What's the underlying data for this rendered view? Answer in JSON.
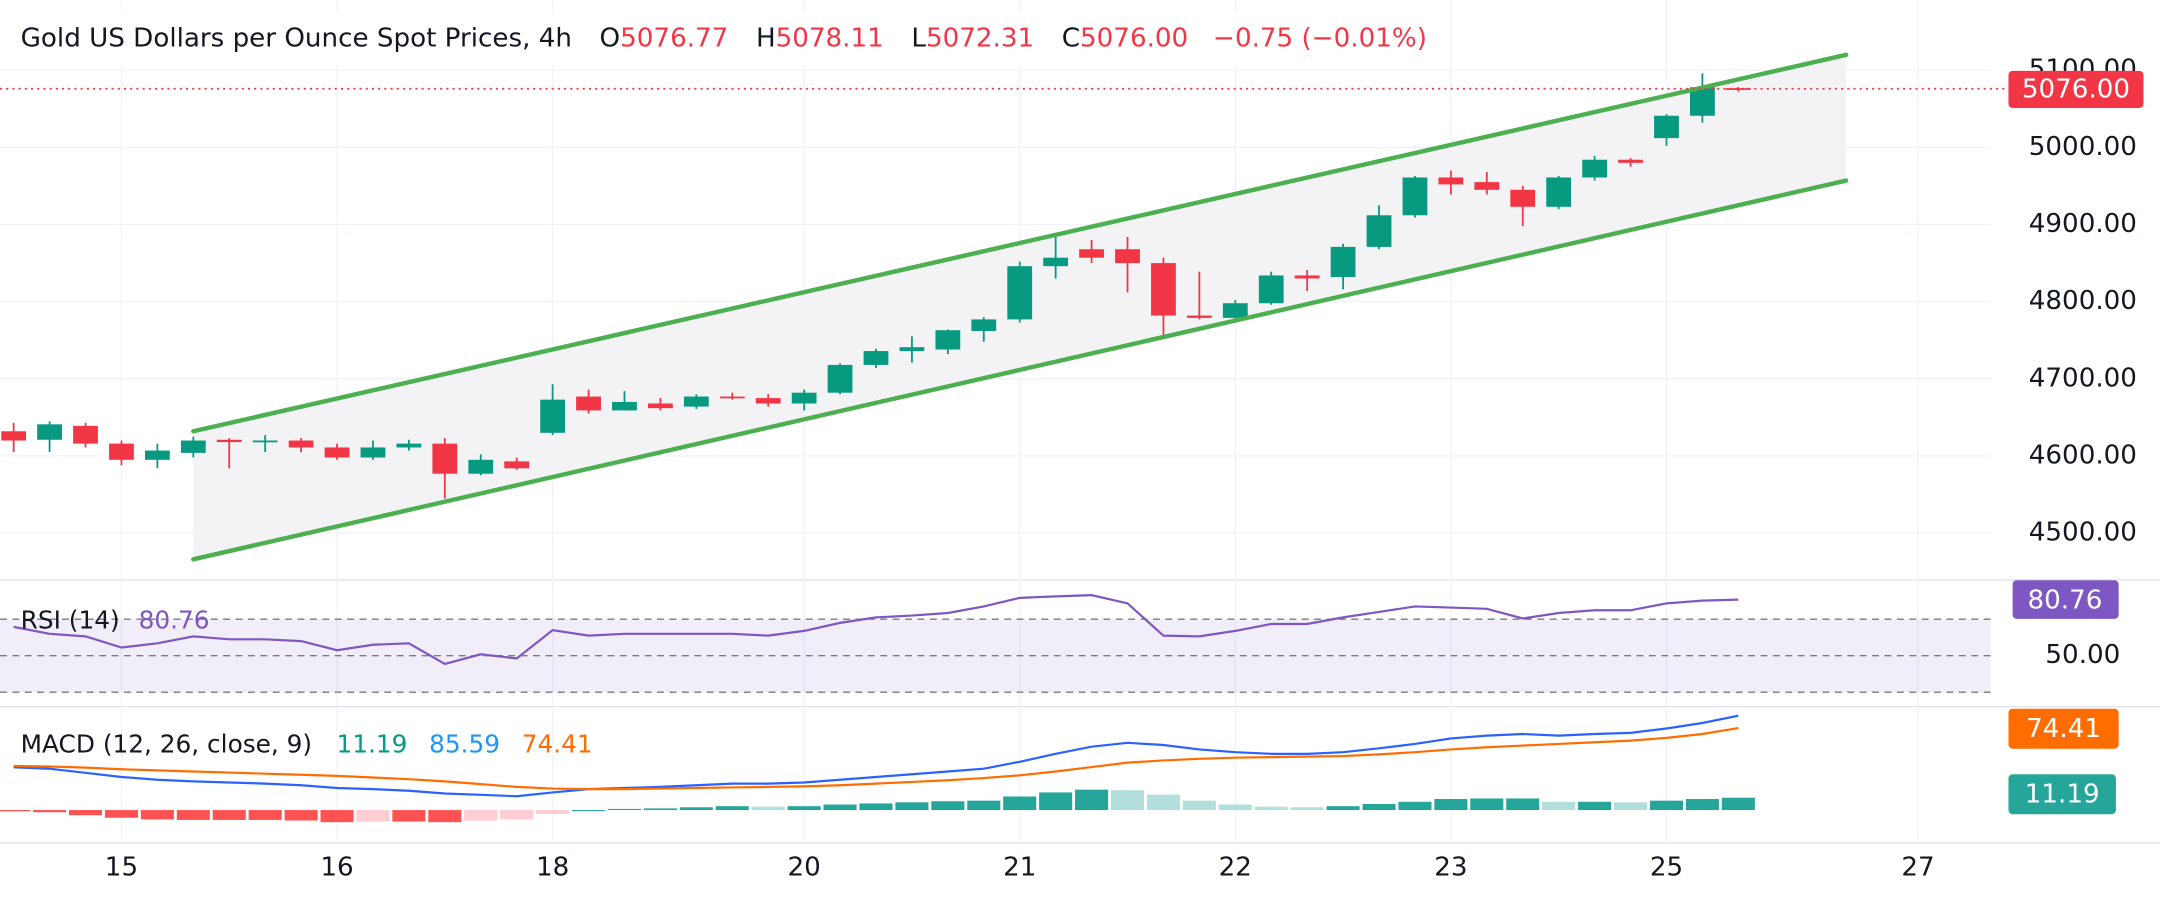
{
  "chart_data": [
    {
      "type": "candlestick",
      "title": "Gold US Dollars per Ounce Spot Prices, 4h",
      "legend_keys": [
        "O",
        "H",
        "L",
        "C"
      ],
      "legend_values": [
        "5076.77",
        "5078.11",
        "5072.31",
        "5076.00"
      ],
      "change": "−0.75 (−0.01%)",
      "open": [
        4632,
        4621,
        4639,
        4616,
        4595,
        4604,
        4621,
        4618,
        4620,
        4611,
        4598,
        4611,
        4616,
        4577,
        4593,
        4630,
        4677,
        4659,
        4668,
        4664,
        4677,
        4675,
        4668,
        4682,
        4718,
        4736,
        4738,
        4762,
        4777,
        4846,
        4868,
        4868,
        4850,
        4782,
        4779,
        4798,
        4834,
        4832,
        4871,
        4912,
        4961,
        4955,
        4945,
        4923,
        4961,
        4984,
        5012,
        5041,
        5076.77
      ],
      "high": [
        4643,
        4645,
        4643,
        4620,
        4616,
        4625,
        4623,
        4627,
        4623,
        4616,
        4620,
        4621,
        4623,
        4602,
        4598,
        4693,
        4686,
        4684,
        4675,
        4680,
        4682,
        4680,
        4686,
        4720,
        4739,
        4755,
        4764,
        4780,
        4852,
        4889,
        4880,
        4884,
        4857,
        4839,
        4802,
        4839,
        4841,
        4875,
        4925,
        4963,
        4970,
        4968,
        4950,
        4963,
        4989,
        4986,
        5043,
        5096,
        5078.11
      ],
      "low": [
        4605,
        4605,
        4611,
        4588,
        4584,
        4598,
        4584,
        4605,
        4605,
        4595,
        4595,
        4607,
        4545,
        4575,
        4582,
        4627,
        4655,
        4659,
        4659,
        4661,
        4673,
        4664,
        4659,
        4680,
        4714,
        4721,
        4732,
        4748,
        4773,
        4830,
        4850,
        4812,
        4755,
        4777,
        4773,
        4796,
        4814,
        4816,
        4868,
        4909,
        4939,
        4939,
        4898,
        4920,
        4957,
        4975,
        5002,
        5032,
        5072.31
      ],
      "close": [
        4620,
        4641,
        4616,
        4595,
        4607,
        4620,
        4618,
        4620,
        4611,
        4598,
        4611,
        4616,
        4577,
        4595,
        4584,
        4673,
        4659,
        4670,
        4662,
        4677,
        4675,
        4668,
        4682,
        4718,
        4736,
        4741,
        4763,
        4777,
        4846,
        4857,
        4857,
        4850,
        4782,
        4779,
        4798,
        4834,
        4830,
        4871,
        4912,
        4961,
        4952,
        4945,
        4923,
        4961,
        4984,
        4980,
        5041,
        5078,
        5076
      ],
      "up_color": "#089981",
      "down_color": "#f23645",
      "ylim": [
        4441,
        5191
      ],
      "yticks": [
        {
          "value": 4500,
          "label": "4500.00"
        },
        {
          "value": 4600,
          "label": "4600.00"
        },
        {
          "value": 4700,
          "label": "4700.00"
        },
        {
          "value": 4800,
          "label": "4800.00"
        },
        {
          "value": 4900,
          "label": "4900.00"
        },
        {
          "value": 5000,
          "label": "5000.00"
        },
        {
          "value": 5100,
          "label": "5100.00"
        }
      ],
      "xlim": [
        -0.38,
        55.02
      ],
      "xticks": [
        {
          "value": 3,
          "label": "15"
        },
        {
          "value": 9,
          "label": "16"
        },
        {
          "value": 15,
          "label": "18"
        },
        {
          "value": 22,
          "label": "20"
        },
        {
          "value": 28,
          "label": "21"
        },
        {
          "value": 34,
          "label": "22"
        },
        {
          "value": 40,
          "label": "23"
        },
        {
          "value": 46,
          "label": "25"
        },
        {
          "value": 53,
          "label": "27"
        }
      ],
      "trendlines": [
        {
          "x": [
            5,
            51
          ],
          "values": [
            4632,
            5120
          ]
        },
        {
          "x": [
            5,
            51
          ],
          "values": [
            4466,
            4957
          ]
        }
      ],
      "trendline_color": "#4caf50",
      "price_line": {
        "value": 5076,
        "label": "5076.00",
        "color": "#f23645"
      },
      "grid": true
    },
    {
      "type": "line",
      "title": "RSI (14)",
      "color": "#7e57c2",
      "values": [
        65.8,
        62,
        60.6,
        54.5,
        56.8,
        60.6,
        59,
        59,
        58,
        53,
        56,
        56.8,
        45.5,
        50.8,
        48.5,
        64,
        61,
        62,
        62,
        62,
        62,
        61,
        63.6,
        68,
        71,
        72,
        73.4,
        77,
        81.7,
        82.5,
        83.2,
        78.7,
        61,
        60.6,
        63.6,
        67.4,
        67.4,
        71,
        74,
        77,
        76.4,
        75.7,
        70.4,
        73.4,
        74.9,
        74.9,
        78.7,
        80.2,
        80.76
      ],
      "levels": [
        70,
        50,
        30
      ],
      "ylim": [
        22.8,
        91.5
      ],
      "yticks": [
        {
          "value": 50,
          "label": "50.00"
        }
      ]
    },
    {
      "type": "macd",
      "title": "MACD (12, 26, close, 9)",
      "macd": [
        38.8,
        37.5,
        33.8,
        30,
        27.5,
        26,
        25,
        24,
        22.5,
        20,
        19,
        17.5,
        15,
        13.8,
        12.5,
        16,
        19,
        20,
        21,
        22.5,
        24,
        24,
        25,
        27.5,
        30,
        32.5,
        35,
        37.5,
        43.8,
        51,
        57.5,
        61,
        59,
        55,
        52.5,
        51,
        51,
        52.5,
        56,
        60,
        65,
        67.5,
        69,
        67.5,
        69,
        70,
        74,
        79,
        85.59
      ],
      "signal": [
        40,
        39.5,
        38.5,
        37,
        36,
        35,
        34,
        33,
        32,
        31,
        29.5,
        28,
        26,
        23.5,
        21,
        19.5,
        19,
        19,
        19.5,
        20,
        20.5,
        21,
        21.5,
        22.5,
        24,
        25.5,
        27,
        29,
        31.5,
        35,
        39,
        43,
        45,
        46.5,
        47.5,
        48,
        48.5,
        49,
        50.5,
        52.5,
        55,
        57,
        58.5,
        60,
        61.5,
        63,
        65.5,
        69,
        74.41
      ],
      "histogram": [
        -1.2,
        -2,
        -4.7,
        -7,
        -8.5,
        -9,
        -9,
        -9,
        -9.5,
        -11,
        -10.5,
        -10.5,
        -11,
        -9.7,
        -8.5,
        -3.5,
        0,
        1,
        1.5,
        2.5,
        3.5,
        3,
        3.5,
        5,
        6,
        7,
        8,
        8.5,
        12.3,
        16,
        18.5,
        18,
        14,
        8.5,
        5,
        3,
        2.5,
        3.5,
        5.5,
        7.5,
        10,
        10.5,
        10.5,
        7.5,
        7.5,
        7,
        8.5,
        10,
        11.19
      ],
      "macd_color": "#2962ff",
      "signal_color": "#ff6d00",
      "hist_colors": {
        "up_rising": "#26a69a",
        "up_falling": "#b2dfdb",
        "down_falling": "#ff5252",
        "down_rising": "#ffcdd2"
      },
      "ylim": [
        -28.75,
        93.75
      ]
    }
  ]
}
